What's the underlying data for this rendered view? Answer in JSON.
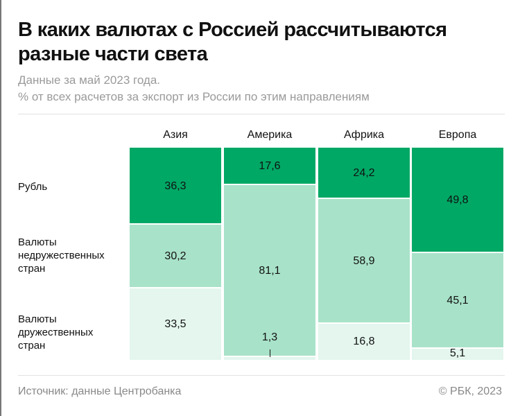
{
  "chart_data": {
    "type": "bar",
    "stacked": true,
    "title": "В каких валютах с Россией рассчитываются разные части света",
    "subtitle": [
      "Данные за май 2023 года.",
      "% от всех расчетов за экспорт из России по этим направлениям"
    ],
    "categories": [
      "Азия",
      "Америка",
      "Африка",
      "Европа"
    ],
    "series": [
      {
        "name": "Рубль",
        "label_lines": [
          "Рубль"
        ],
        "values": [
          36.3,
          17.6,
          24.2,
          49.8
        ],
        "labels": [
          "36,3",
          "17,6",
          "24,2",
          "49,8"
        ],
        "color": "#00a865"
      },
      {
        "name": "Валюты недружественных стран",
        "label_lines": [
          "Валюты",
          "недружественных",
          "стран"
        ],
        "values": [
          30.2,
          81.1,
          58.9,
          45.1
        ],
        "labels": [
          "30,2",
          "81,1",
          "58,9",
          "45,1"
        ],
        "color": "#a8e2c9"
      },
      {
        "name": "Валюты дружественных стран",
        "label_lines": [
          "Валюты",
          "дружественных",
          "стран"
        ],
        "values": [
          33.5,
          1.3,
          16.8,
          5.1
        ],
        "labels": [
          "33,5",
          "1,3",
          "16,8",
          "5,1"
        ],
        "color": "#e4f6ee"
      }
    ],
    "ylim": [
      0,
      100
    ],
    "grid": false,
    "legend": "left"
  },
  "footer": {
    "source": "Источник: данные Центробанка",
    "copyright": "© РБК, 2023"
  }
}
